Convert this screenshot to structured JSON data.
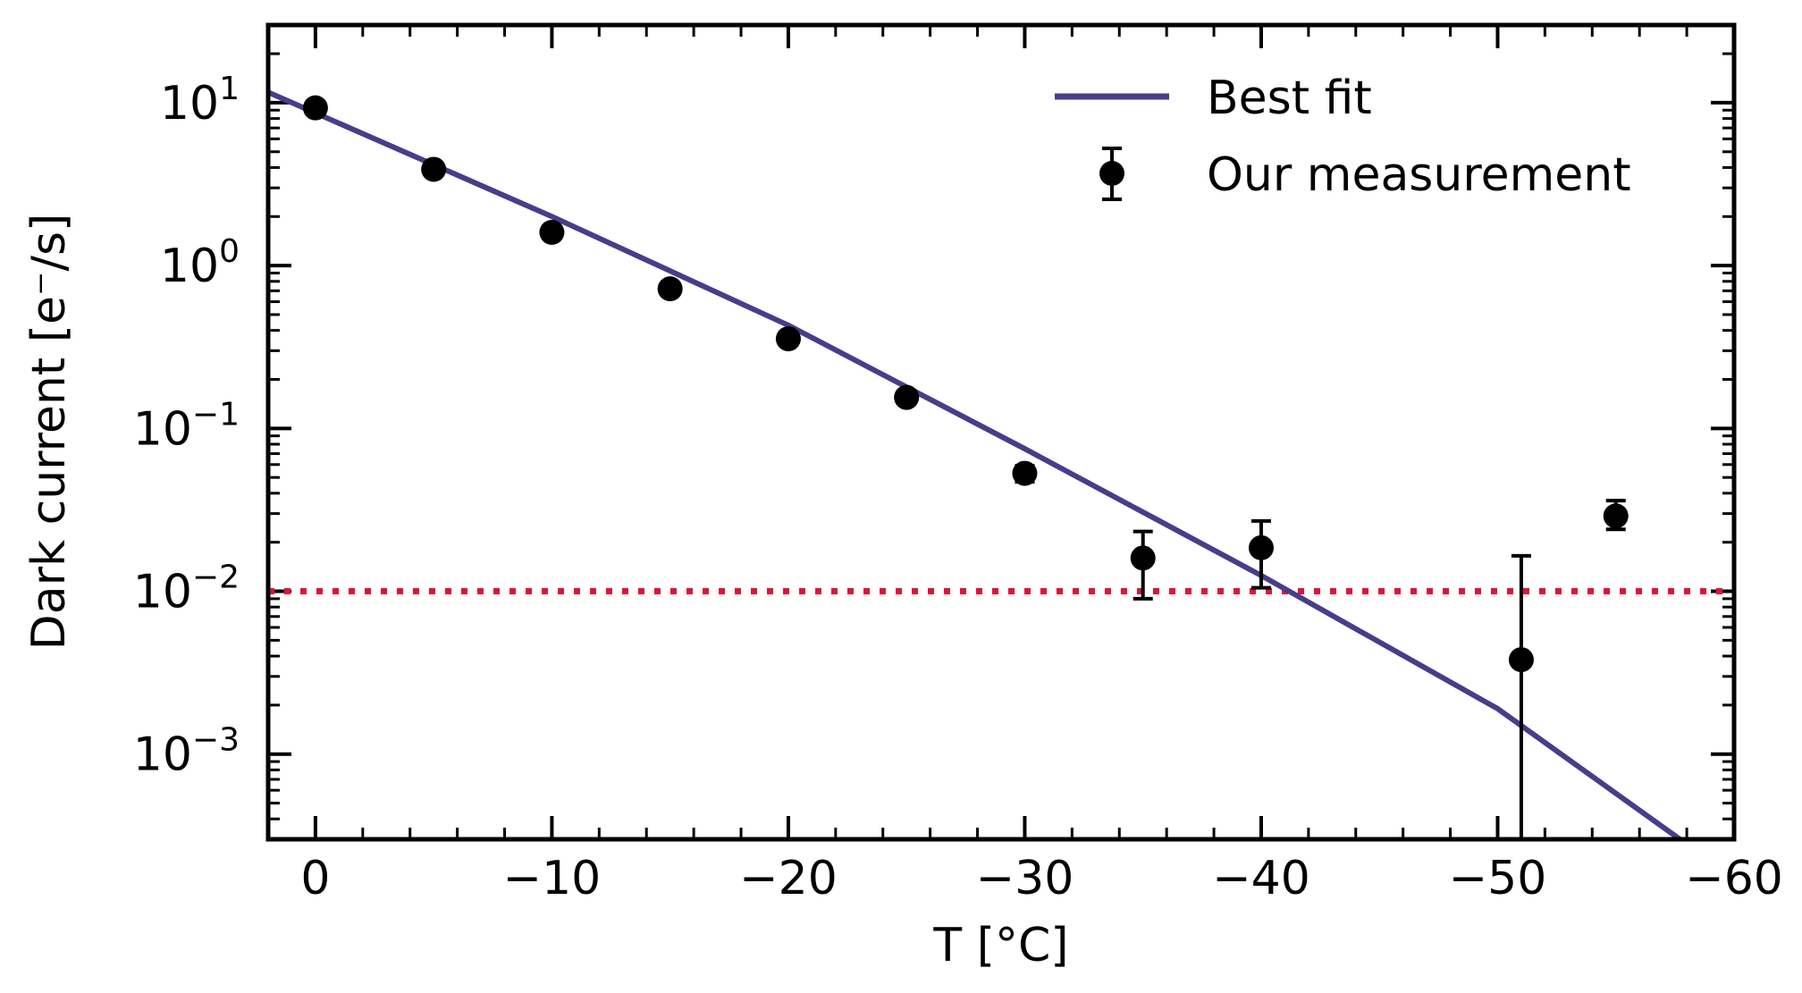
{
  "chart_data": {
    "type": "scatter",
    "xlabel": "T [°C]",
    "ylabel": "Dark current [e⁻/s]",
    "xlim": [
      2,
      -60
    ],
    "ylim": [
      0.0003,
      30
    ],
    "yscale": "log",
    "x_ticks": [
      0,
      -10,
      -20,
      -30,
      -40,
      -50,
      -60
    ],
    "x_tick_labels": [
      "0",
      "−10",
      "−20",
      "−30",
      "−40",
      "−50",
      "−60"
    ],
    "y_ticks": [
      0.001,
      0.01,
      0.1,
      1,
      10
    ],
    "y_tick_labels": [
      {
        "base": "10",
        "exp": "−3"
      },
      {
        "base": "10",
        "exp": "−2"
      },
      {
        "base": "10",
        "exp": "−1"
      },
      {
        "base": "10",
        "exp": "0"
      },
      {
        "base": "10",
        "exp": "1"
      }
    ],
    "legend_position": "top-right",
    "series": [
      {
        "name": "Best fit",
        "kind": "line",
        "color": "#483D8B",
        "x": [
          2,
          -10,
          -20,
          -30,
          -40,
          -50,
          -58
        ],
        "y": [
          11.6,
          2.0,
          0.43,
          0.075,
          0.0125,
          0.0019,
          0.00028
        ]
      },
      {
        "name": "Our measurement",
        "kind": "errorbar",
        "color": "#000000",
        "points": [
          {
            "x": 0,
            "y": 9.3,
            "err_lo": 0,
            "err_hi": 0
          },
          {
            "x": -5,
            "y": 3.9,
            "err_lo": 0,
            "err_hi": 0
          },
          {
            "x": -10,
            "y": 1.6,
            "err_lo": 0,
            "err_hi": 0
          },
          {
            "x": -15,
            "y": 0.72,
            "err_lo": 0,
            "err_hi": 0
          },
          {
            "x": -20,
            "y": 0.355,
            "err_lo": 0,
            "err_hi": 0
          },
          {
            "x": -25,
            "y": 0.155,
            "err_lo": 0,
            "err_hi": 0
          },
          {
            "x": -30,
            "y": 0.053,
            "err_lo": 0.006,
            "err_hi": 0.006
          },
          {
            "x": -35,
            "y": 0.016,
            "err_lo": 0.007,
            "err_hi": 0.0073
          },
          {
            "x": -40,
            "y": 0.0185,
            "err_lo": 0.008,
            "err_hi": 0.0085
          },
          {
            "x": -51,
            "y": 0.0038,
            "err_lo": 0.0035,
            "err_hi": 0.0127
          },
          {
            "x": -55,
            "y": 0.029,
            "err_lo": 0.005,
            "err_hi": 0.007
          }
        ]
      }
    ],
    "reference_line": {
      "y": 0.01,
      "color": "#DC143C",
      "style": "dotted"
    }
  }
}
